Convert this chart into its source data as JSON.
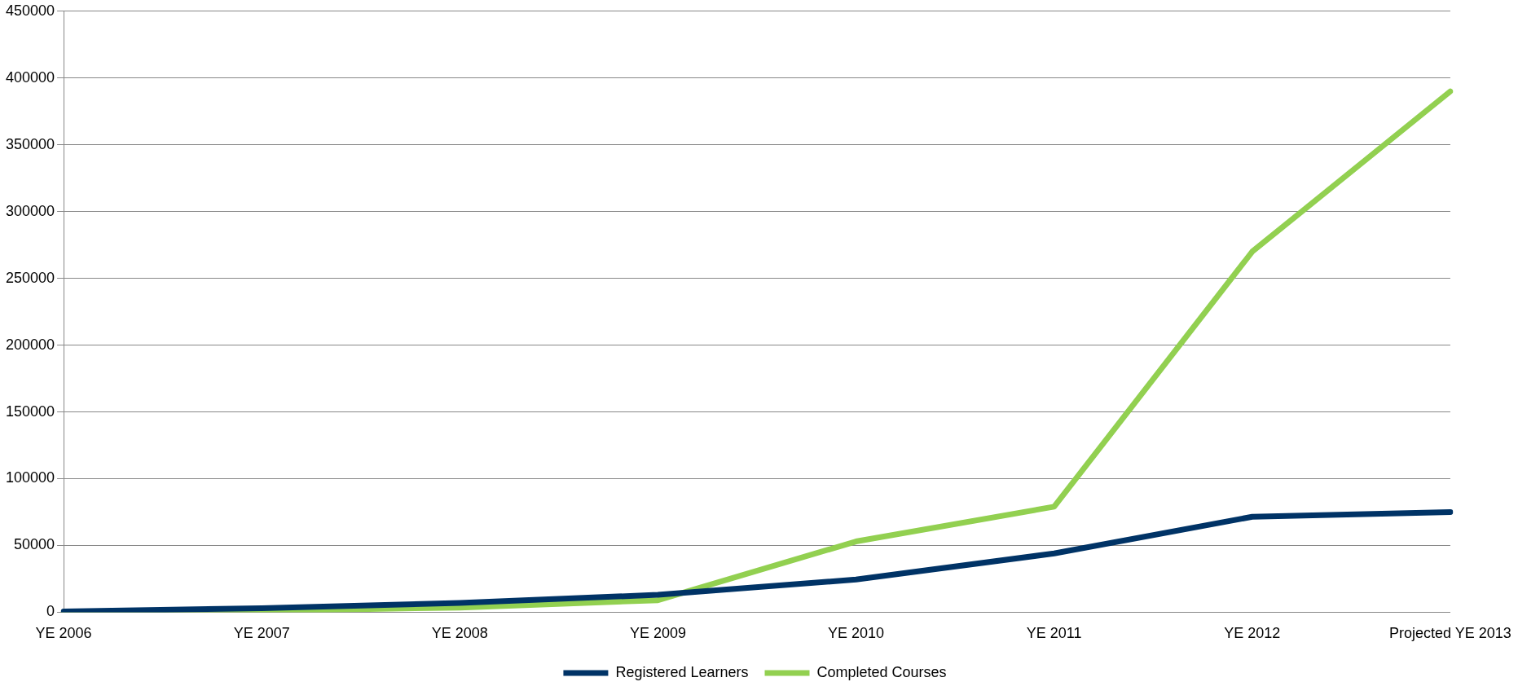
{
  "chart_data": {
    "type": "line",
    "categories": [
      "YE 2006",
      "YE 2007",
      "YE 2008",
      "YE 2009",
      "YE 2010",
      "YE 2011",
      "YE 2012",
      "Projected YE 2013"
    ],
    "series": [
      {
        "name": "Registered Learners",
        "color": "#003366",
        "values": [
          500,
          3000,
          7000,
          13000,
          24500,
          44000,
          71500,
          75000
        ]
      },
      {
        "name": "Completed Courses",
        "color": "#92d050",
        "values": [
          0,
          1000,
          3500,
          9000,
          53000,
          79000,
          270000,
          390000
        ]
      }
    ],
    "ylim": [
      0,
      450000
    ],
    "yticks": [
      0,
      50000,
      100000,
      150000,
      200000,
      250000,
      300000,
      350000,
      400000,
      450000
    ],
    "grid": "y",
    "legend": "bottom",
    "marker": "none",
    "line_style": "solid"
  }
}
